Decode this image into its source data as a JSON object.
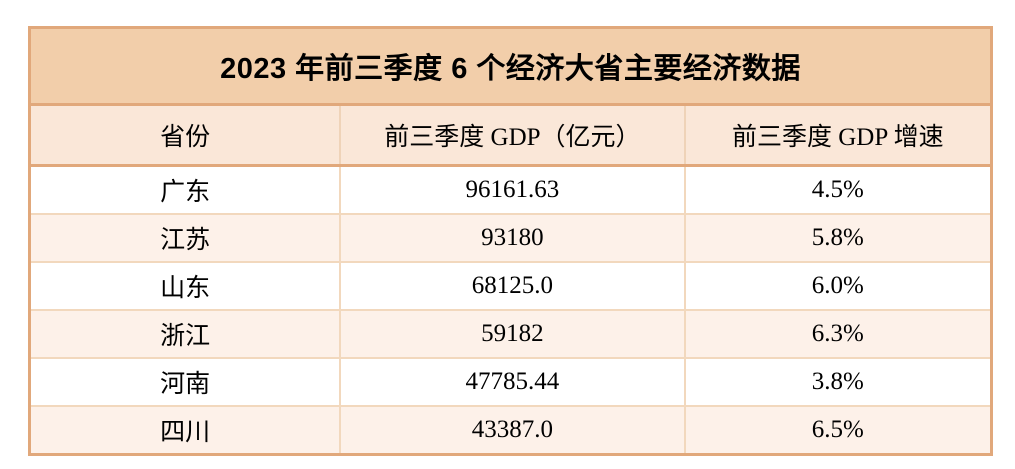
{
  "table": {
    "title": "2023 年前三季度 6 个经济大省主要经济数据",
    "columns": [
      "省份",
      "前三季度 GDP（亿元）",
      "前三季度 GDP 增速"
    ],
    "rows": [
      {
        "province": "广东",
        "gdp": "96161.63",
        "growth": "4.5%"
      },
      {
        "province": "江苏",
        "gdp": "93180",
        "growth": "5.8%"
      },
      {
        "province": "山东",
        "gdp": "68125.0",
        "growth": "6.0%"
      },
      {
        "province": "浙江",
        "gdp": "59182",
        "growth": "6.3%"
      },
      {
        "province": "河南",
        "gdp": "47785.44",
        "growth": "3.8%"
      },
      {
        "province": "四川",
        "gdp": "43387.0",
        "growth": "6.5%"
      }
    ],
    "colors": {
      "title_bg": "#F2CEAA",
      "header_bg": "#FAE7D8",
      "row_bg": "#FFFFFF",
      "row_alt_bg": "#FDF1E9",
      "border_strong": "#E1A87B",
      "border_light": "#F2D8BD",
      "text": "#000000"
    }
  },
  "chart_data": {
    "type": "table",
    "title": "2023 年前三季度 6 个经济大省主要经济数据",
    "columns": [
      "省份",
      "前三季度 GDP（亿元）",
      "前三季度 GDP 增速"
    ],
    "rows": [
      [
        "广东",
        "96161.63",
        "4.5%"
      ],
      [
        "江苏",
        "93180",
        "5.8%"
      ],
      [
        "山东",
        "68125.0",
        "6.0%"
      ],
      [
        "浙江",
        "59182",
        "6.3%"
      ],
      [
        "河南",
        "47785.44",
        "3.8%"
      ],
      [
        "四川",
        "43387.0",
        "6.5%"
      ]
    ]
  }
}
